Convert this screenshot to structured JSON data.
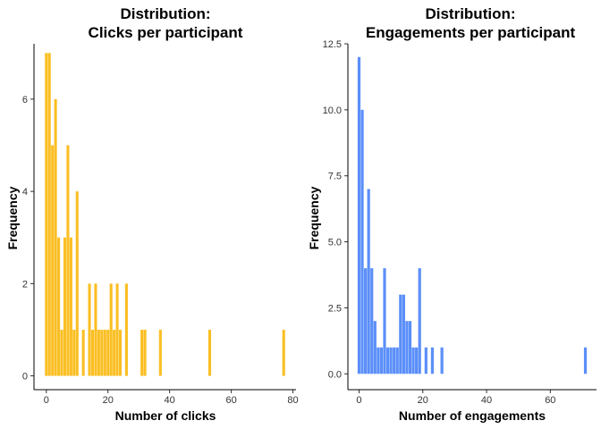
{
  "chart_data": [
    {
      "type": "bar",
      "title_line1": "Distribution:",
      "title_line2": "Clicks per participant",
      "xlabel": "Number of clicks",
      "ylabel": "Frequency",
      "color": "#FBBF24",
      "xlim": [
        -4,
        81
      ],
      "ylim": [
        -0.3,
        7.2
      ],
      "xticks": [
        0,
        20,
        40,
        60,
        80
      ],
      "yticks": [
        0,
        2,
        4,
        6
      ],
      "grid": false,
      "x": [
        0,
        1,
        2,
        3,
        4,
        5,
        6,
        7,
        8,
        9,
        10,
        12,
        14,
        15,
        16,
        17,
        18,
        19,
        20,
        21,
        22,
        23,
        24,
        26,
        31,
        32,
        37,
        53,
        77
      ],
      "values": [
        7,
        7,
        5,
        6,
        3,
        1,
        3,
        5,
        3,
        1,
        4,
        1,
        2,
        1,
        2,
        1,
        1,
        1,
        1,
        2,
        1,
        2,
        1,
        2,
        1,
        1,
        1,
        1,
        1
      ]
    },
    {
      "type": "bar",
      "title_line1": "Distribution:",
      "title_line2": "Engagements per participant",
      "xlabel": "Number of engagements",
      "ylabel": "Frequency",
      "color": "#5B8FF9",
      "xlim": [
        -3.5,
        74.5
      ],
      "ylim": [
        -0.6,
        12.5
      ],
      "xticks": [
        0,
        20,
        40,
        60
      ],
      "yticks": [
        0.0,
        2.5,
        5.0,
        7.5,
        10.0,
        12.5
      ],
      "ytick_labels": [
        "0.0",
        "2.5",
        "5.0",
        "7.5",
        "10.0",
        "12.5"
      ],
      "grid": false,
      "x": [
        0,
        1,
        2,
        3,
        4,
        5,
        6,
        7,
        8,
        9,
        10,
        11,
        12,
        13,
        14,
        15,
        16,
        17,
        18,
        19,
        21,
        23,
        26,
        71
      ],
      "values": [
        12,
        10,
        4,
        7,
        4,
        2,
        1,
        1,
        4,
        1,
        1,
        1,
        1,
        3,
        3,
        2,
        2,
        1,
        1,
        4,
        1,
        1,
        1,
        1
      ]
    }
  ]
}
